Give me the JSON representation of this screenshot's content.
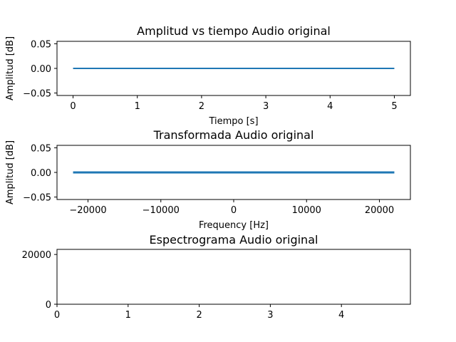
{
  "chart_data": [
    {
      "type": "line",
      "title": "Amplitud vs tiempo Audio original",
      "xlabel": "Tiempo [s]",
      "ylabel": "Amplitud [dB]",
      "xlim": [
        -0.25,
        5.25
      ],
      "ylim": [
        -0.055,
        0.055
      ],
      "xticks": [
        0,
        1,
        2,
        3,
        4,
        5
      ],
      "xtick_labels": [
        "0",
        "1",
        "2",
        "3",
        "4",
        "5"
      ],
      "yticks": [
        0.05,
        0.0,
        -0.05
      ],
      "ytick_labels": [
        "0.05",
        "0.00",
        "−0.05"
      ],
      "series": [
        {
          "x": [
            0,
            5
          ],
          "values": [
            0,
            0
          ],
          "color": "#1f77b4"
        }
      ],
      "grid": false
    },
    {
      "type": "line",
      "title": "Transformada Audio original",
      "xlabel": "Frequency [Hz]",
      "ylabel": "Amplitud [dB]",
      "xlim": [
        -24255,
        24255
      ],
      "ylim": [
        -0.055,
        0.055
      ],
      "xticks": [
        -20000,
        -10000,
        0,
        10000,
        20000
      ],
      "xtick_labels": [
        "−20000",
        "−10000",
        "0",
        "10000",
        "20000"
      ],
      "yticks": [
        0.05,
        0.0,
        -0.05
      ],
      "ytick_labels": [
        "0.05",
        "0.00",
        "−0.05"
      ],
      "series": [
        {
          "x": [
            -22050,
            22050
          ],
          "values": [
            0,
            0
          ],
          "color": "#1f77b4"
        }
      ],
      "grid": false
    },
    {
      "type": "heatmap",
      "title": "Espectrograma Audio original",
      "xlabel": "",
      "ylabel": "",
      "xlim": [
        0,
        4.97
      ],
      "ylim": [
        0,
        22050
      ],
      "xticks": [
        0,
        1,
        2,
        3,
        4
      ],
      "xtick_labels": [
        "0",
        "1",
        "2",
        "3",
        "4"
      ],
      "yticks": [
        0,
        20000
      ],
      "ytick_labels": [
        "0",
        "20000"
      ],
      "series": [],
      "grid": false
    }
  ]
}
